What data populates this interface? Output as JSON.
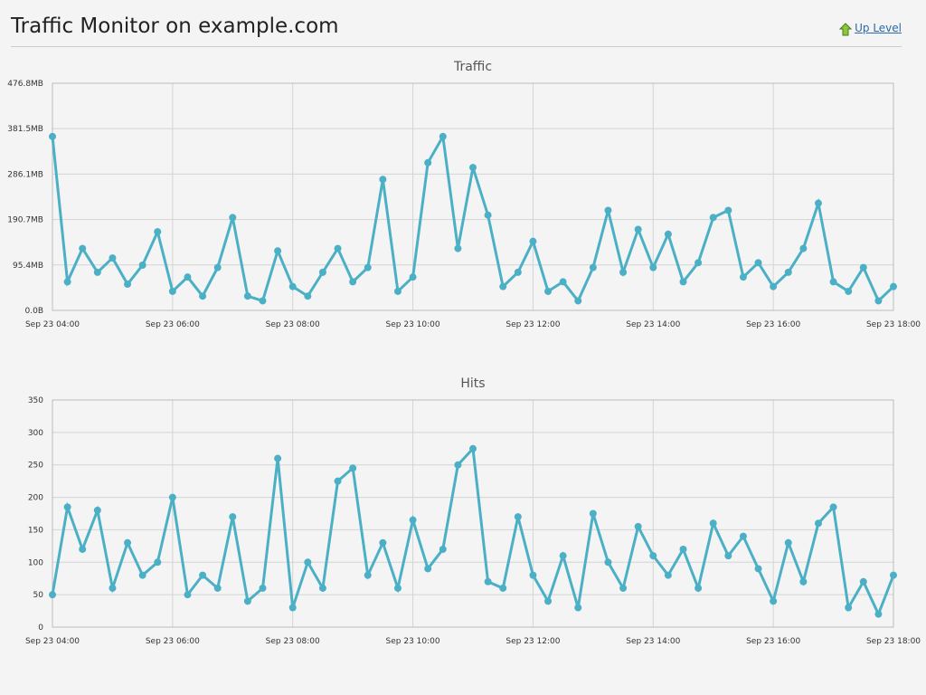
{
  "header": {
    "title": "Traffic Monitor on example.com",
    "link": "Up Level"
  },
  "chart_data": [
    {
      "type": "line",
      "title": "Traffic",
      "color": "#4bb0c6",
      "grid": true,
      "x": [
        4,
        4.25,
        4.5,
        4.75,
        5,
        5.25,
        5.5,
        5.75,
        6,
        6.25,
        6.5,
        6.75,
        7,
        7.25,
        7.5,
        7.75,
        8,
        8.25,
        8.5,
        8.75,
        9,
        9.25,
        9.5,
        9.75,
        10,
        10.25,
        10.5,
        10.75,
        11,
        11.25,
        11.5,
        11.75,
        12,
        12.25,
        12.5,
        12.75,
        13,
        13.25,
        13.5,
        13.75,
        14,
        14.25,
        14.5,
        14.75,
        15,
        15.25,
        15.5,
        15.75,
        16,
        16.25,
        16.5,
        16.75,
        17,
        17.25,
        17.5,
        17.75,
        18
      ],
      "values": [
        365,
        60,
        130,
        80,
        110,
        55,
        95,
        165,
        40,
        70,
        30,
        90,
        195,
        30,
        20,
        125,
        50,
        30,
        80,
        130,
        60,
        90,
        275,
        40,
        70,
        310,
        365,
        130,
        300,
        200,
        50,
        80,
        145,
        40,
        60,
        20,
        90,
        210,
        80,
        170,
        90,
        160,
        60,
        100,
        195,
        210,
        70,
        100,
        50,
        80,
        130,
        225,
        60,
        40,
        90,
        20,
        50
      ],
      "xlim": [
        4,
        18
      ],
      "xticks": [
        {
          "value": 4,
          "label": "Sep 23 04:00"
        },
        {
          "value": 6,
          "label": "Sep 23 06:00"
        },
        {
          "value": 8,
          "label": "Sep 23 08:00"
        },
        {
          "value": 10,
          "label": "Sep 23 10:00"
        },
        {
          "value": 12,
          "label": "Sep 23 12:00"
        },
        {
          "value": 14,
          "label": "Sep 23 14:00"
        },
        {
          "value": 16,
          "label": "Sep 23 16:00"
        },
        {
          "value": 18,
          "label": "Sep 23 18:00"
        }
      ],
      "ylim": [
        0,
        476.8
      ],
      "yticks": [
        {
          "value": 0,
          "label": "0.0B"
        },
        {
          "value": 95.4,
          "label": "95.4MB"
        },
        {
          "value": 190.7,
          "label": "190.7MB"
        },
        {
          "value": 286.1,
          "label": "286.1MB"
        },
        {
          "value": 381.5,
          "label": "381.5MB"
        },
        {
          "value": 476.8,
          "label": "476.8MB"
        }
      ]
    },
    {
      "type": "line",
      "title": "Hits",
      "color": "#4bb0c6",
      "grid": true,
      "x": [
        4,
        4.25,
        4.5,
        4.75,
        5,
        5.25,
        5.5,
        5.75,
        6,
        6.25,
        6.5,
        6.75,
        7,
        7.25,
        7.5,
        7.75,
        8,
        8.25,
        8.5,
        8.75,
        9,
        9.25,
        9.5,
        9.75,
        10,
        10.25,
        10.5,
        10.75,
        11,
        11.25,
        11.5,
        11.75,
        12,
        12.25,
        12.5,
        12.75,
        13,
        13.25,
        13.5,
        13.75,
        14,
        14.25,
        14.5,
        14.75,
        15,
        15.25,
        15.5,
        15.75,
        16,
        16.25,
        16.5,
        16.75,
        17,
        17.25,
        17.5,
        17.75,
        18
      ],
      "values": [
        50,
        185,
        120,
        180,
        60,
        130,
        80,
        100,
        200,
        50,
        80,
        60,
        170,
        40,
        60,
        260,
        30,
        100,
        60,
        225,
        245,
        80,
        130,
        60,
        165,
        90,
        120,
        250,
        275,
        70,
        60,
        170,
        80,
        40,
        110,
        30,
        175,
        100,
        60,
        155,
        110,
        80,
        120,
        60,
        160,
        110,
        140,
        90,
        40,
        130,
        70,
        160,
        185,
        30,
        70,
        20,
        80
      ],
      "xlim": [
        4,
        18
      ],
      "xticks": [
        {
          "value": 4,
          "label": "Sep 23 04:00"
        },
        {
          "value": 6,
          "label": "Sep 23 06:00"
        },
        {
          "value": 8,
          "label": "Sep 23 08:00"
        },
        {
          "value": 10,
          "label": "Sep 23 10:00"
        },
        {
          "value": 12,
          "label": "Sep 23 12:00"
        },
        {
          "value": 14,
          "label": "Sep 23 14:00"
        },
        {
          "value": 16,
          "label": "Sep 23 16:00"
        },
        {
          "value": 18,
          "label": "Sep 23 18:00"
        }
      ],
      "ylim": [
        0,
        350
      ],
      "yticks": [
        0,
        50,
        100,
        150,
        200,
        250,
        300,
        350
      ]
    }
  ]
}
